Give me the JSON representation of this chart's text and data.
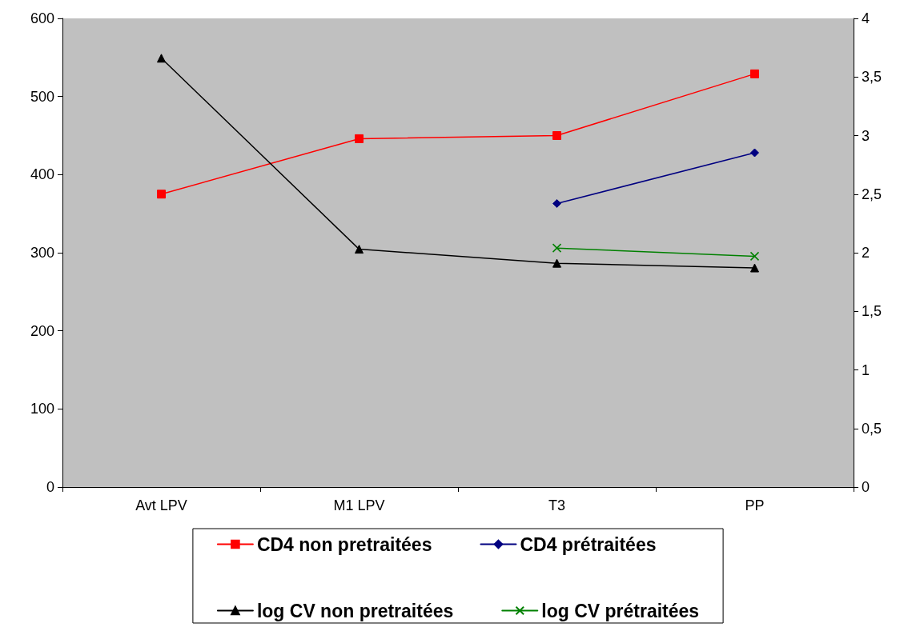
{
  "chart_data": {
    "type": "line",
    "categories": [
      "Avt LPV",
      "M1 LPV",
      "T3",
      "PP"
    ],
    "series": [
      {
        "name": "CD4 non pretraitées",
        "color": "#ff0000",
        "marker": "square",
        "values": [
          375,
          446,
          450,
          529
        ]
      },
      {
        "name": "CD4 prétraitées",
        "color": "#000080",
        "marker": "diamond",
        "values": [
          null,
          null,
          363,
          428
        ]
      },
      {
        "name": "log CV non pretraitées",
        "color": "#000000",
        "marker": "triangle",
        "axis": "y2",
        "values": [
          3.66,
          2.03,
          1.91,
          1.87
        ]
      },
      {
        "name": "log CV prétraitées",
        "color": "#008000",
        "marker": "cross",
        "axis": "y2",
        "values": [
          null,
          null,
          2.04,
          1.97
        ]
      }
    ],
    "ylim": [
      0,
      600
    ],
    "yticks": [
      0,
      100,
      200,
      300,
      400,
      500,
      600
    ],
    "y2lim": [
      0,
      4
    ],
    "y2ticks": [
      0,
      {
        "value": 0.5,
        "label": "0,5"
      },
      1,
      {
        "value": 1.5,
        "label": "1,5"
      },
      2,
      {
        "value": 2.5,
        "label": "2,5"
      },
      3,
      {
        "value": 3.5,
        "label": "3,5"
      },
      4
    ],
    "grid": false,
    "legend": "bottom",
    "line_style": "solid"
  }
}
